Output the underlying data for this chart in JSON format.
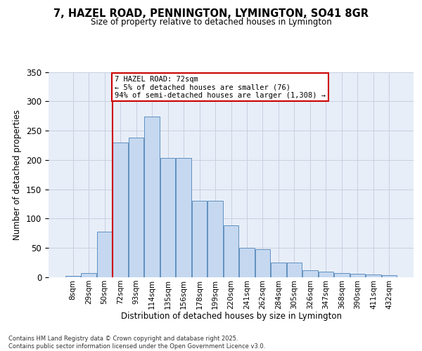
{
  "title_line1": "7, HAZEL ROAD, PENNINGTON, LYMINGTON, SO41 8GR",
  "title_line2": "Size of property relative to detached houses in Lymington",
  "xlabel": "Distribution of detached houses by size in Lymington",
  "ylabel": "Number of detached properties",
  "categories": [
    "8sqm",
    "29sqm",
    "50sqm",
    "72sqm",
    "93sqm",
    "114sqm",
    "135sqm",
    "156sqm",
    "178sqm",
    "199sqm",
    "220sqm",
    "241sqm",
    "262sqm",
    "284sqm",
    "305sqm",
    "326sqm",
    "347sqm",
    "368sqm",
    "390sqm",
    "411sqm",
    "432sqm"
  ],
  "values": [
    2,
    7,
    78,
    230,
    238,
    274,
    204,
    204,
    130,
    130,
    89,
    50,
    48,
    25,
    25,
    12,
    9,
    7,
    6,
    5,
    3
  ],
  "bar_color": "#c5d8f0",
  "bar_edge_color": "#6090c0",
  "vline_x_index": 3,
  "vline_color": "#cc0000",
  "annotation_text": "7 HAZEL ROAD: 72sqm\n← 5% of detached houses are smaller (76)\n94% of semi-detached houses are larger (1,308) →",
  "annotation_box_color": "#ffffff",
  "annotation_box_edge": "#cc0000",
  "background_color": "#e8eef8",
  "grid_color": "#c8d0e0",
  "footer_text": "Contains HM Land Registry data © Crown copyright and database right 2025.\nContains public sector information licensed under the Open Government Licence v3.0.",
  "ylim": [
    0,
    350
  ],
  "yticks": [
    0,
    50,
    100,
    150,
    200,
    250,
    300,
    350
  ]
}
